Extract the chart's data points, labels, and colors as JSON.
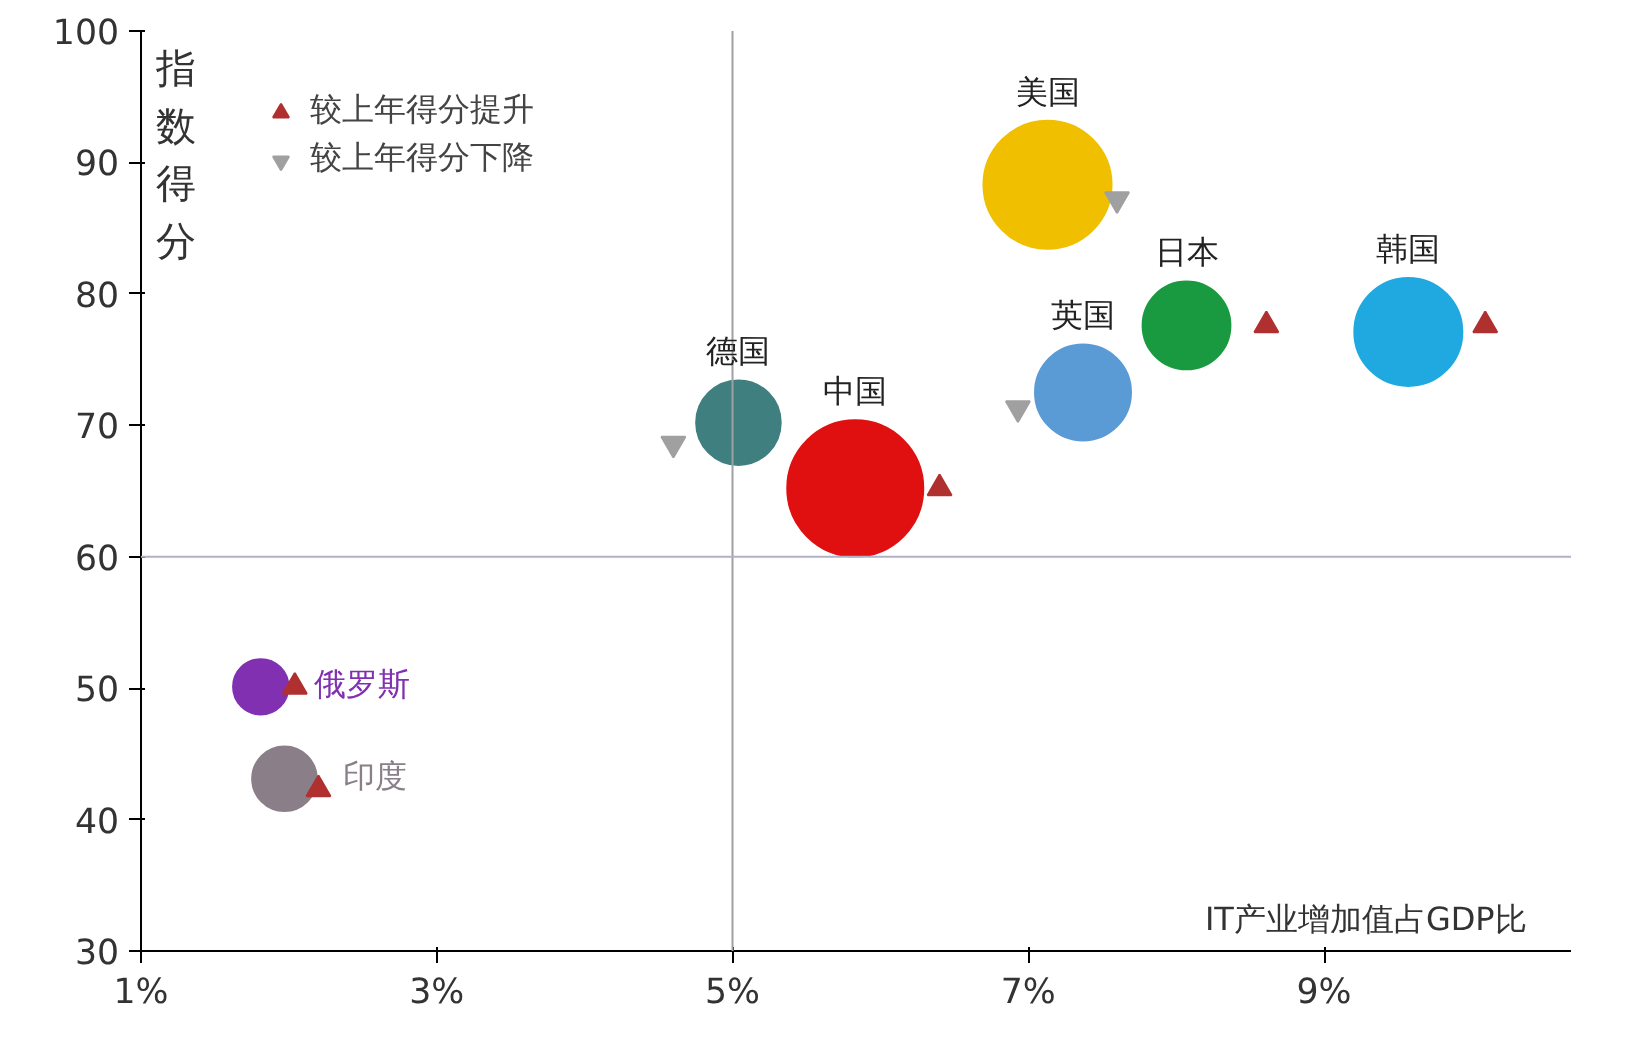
{
  "chart_data": {
    "type": "bubble",
    "xlabel": "IT产业增加值占GDP比",
    "ylabel": "指数得分",
    "xlim": [
      1,
      10.67
    ],
    "ylim": [
      30,
      100
    ],
    "xticks": [
      {
        "value": 1,
        "label": "1%"
      },
      {
        "value": 3,
        "label": "3%"
      },
      {
        "value": 5,
        "label": "5%"
      },
      {
        "value": 7,
        "label": "7%"
      },
      {
        "value": 9,
        "label": "9%"
      }
    ],
    "yticks": [
      30,
      40,
      50,
      60,
      70,
      80,
      90,
      100
    ],
    "grid": false,
    "legend": "top left",
    "ref_lines": [
      {
        "axis": "x",
        "value": 5,
        "color": "#a0a0a0"
      },
      {
        "axis": "y",
        "value": 60,
        "color": "#b0b0c8"
      }
    ],
    "series": [
      {
        "name": "美国",
        "color": "#f0c000",
        "x": [
          7.13
        ],
        "values": [
          88.3
        ],
        "sizes": [
          0.89
        ]
      },
      {
        "name": "德国",
        "color": "#3f7f80",
        "x": [
          5.04
        ],
        "values": [
          70.2
        ],
        "sizes": [
          0.4
        ]
      },
      {
        "name": "中国",
        "color": "#e01010",
        "x": [
          5.83
        ],
        "values": [
          65.2
        ],
        "sizes": [
          1
        ]
      },
      {
        "name": "英国",
        "color": "#5b9bd5",
        "x": [
          7.37
        ],
        "values": [
          72.5
        ],
        "sizes": [
          0.51
        ]
      },
      {
        "name": "日本",
        "color": "#1a9a40",
        "x": [
          8.07
        ],
        "values": [
          77.6
        ],
        "sizes": [
          0.43
        ]
      },
      {
        "name": "韩国",
        "color": "#20a8e0",
        "x": [
          9.57
        ],
        "values": [
          77.1
        ],
        "sizes": [
          0.64
        ]
      },
      {
        "name": "俄罗斯",
        "color": "#8030b0",
        "x": [
          1.81
        ],
        "values": [
          50.1
        ],
        "sizes": [
          0.18
        ]
      },
      {
        "name": "印度",
        "color": "#8a7f88",
        "x": [
          1.97
        ],
        "values": [
          43.1
        ],
        "sizes": [
          0.24
        ]
      },
      {
        "type": "scatter",
        "name": "较上年得分提升",
        "color": "#b03030",
        "marker": "triangle",
        "x": [
          6.4,
          8.61,
          10.09,
          2.04,
          2.2
        ],
        "values": [
          65.2,
          77.6,
          77.6,
          50.1,
          42.3
        ]
      },
      {
        "type": "scatter",
        "name": "较上年得分下降",
        "color": "#a0a0a0",
        "x": [
          7.6,
          4.6,
          6.93
        ],
        "values": [
          87.2,
          68.6,
          71.3
        ]
      }
    ]
  }
}
